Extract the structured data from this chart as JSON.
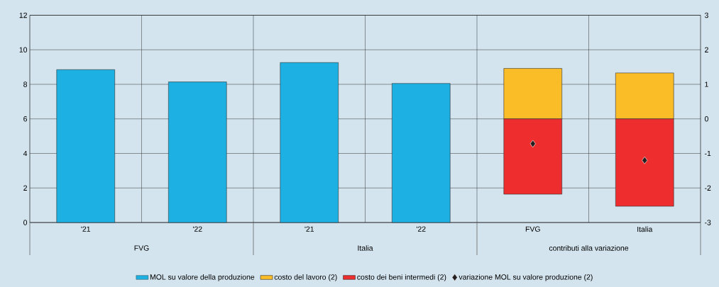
{
  "chart_data": {
    "type": "bar",
    "stacked": true,
    "grid": true,
    "legend": "bottom",
    "marker": "diamond",
    "categories": [
      "'21",
      "'22",
      "'21",
      "'22",
      "FVG",
      "Italia"
    ],
    "annotations": [
      "FVG",
      "Italia",
      "contributi alla variazione"
    ],
    "ylim": [
      0,
      12
    ],
    "yticks": [
      0,
      2,
      4,
      6,
      8,
      10,
      12
    ],
    "y2lim": [
      -3,
      3
    ],
    "y2ticks": [
      -3,
      -2,
      -1,
      0,
      1,
      2,
      3
    ],
    "series": [
      {
        "name": "MOL su valore della produzione",
        "color": "#1cb0e3",
        "axis": "y",
        "values": [
          8.85,
          8.14,
          9.26,
          8.05,
          null,
          null
        ]
      },
      {
        "name": "costo del lavoro (2)",
        "color": "#fbbd27",
        "axis": "y2",
        "values": [
          null,
          null,
          null,
          null,
          1.46,
          1.33
        ]
      },
      {
        "name": "costo dei beni intermedi (2)",
        "color": "#ee2e2e",
        "axis": "y2",
        "values": [
          null,
          null,
          null,
          null,
          -2.18,
          -2.53
        ]
      },
      {
        "name": "variazione MOL su valore produzione (2)",
        "type": "scatter",
        "color": "#231f20",
        "axis": "y2",
        "values": [
          null,
          null,
          null,
          null,
          -0.72,
          -1.2
        ]
      }
    ]
  }
}
